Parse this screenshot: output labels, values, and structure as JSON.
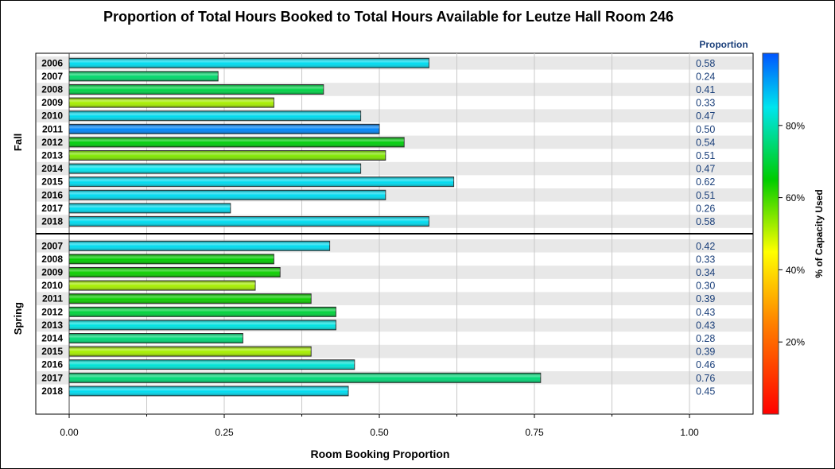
{
  "chart_data": {
    "type": "bar",
    "orientation": "horizontal",
    "title": "Proportion of Total Hours Booked to Total Hours Available for Leutze Hall Room 246",
    "xlabel": "Room Booking Proportion",
    "value_column_header": "Proportion",
    "xlim": [
      0,
      1.1
    ],
    "x_ticks": [
      "0.00",
      "0.25",
      "0.50",
      "0.75",
      "1.00"
    ],
    "x_tick_values": [
      0,
      0.25,
      0.5,
      0.75,
      1.0
    ],
    "grid": true,
    "colorbar": {
      "label": "% of Capacity Used",
      "ticks": [
        "20%",
        "40%",
        "60%",
        "80%"
      ],
      "tick_values": [
        20,
        40,
        60,
        80
      ],
      "range": [
        0,
        100
      ],
      "placement": "right"
    },
    "groups": [
      {
        "name": "Fall",
        "categories": [
          "2006",
          "2007",
          "2008",
          "2009",
          "2010",
          "2011",
          "2012",
          "2013",
          "2014",
          "2015",
          "2016",
          "2017",
          "2018"
        ],
        "values": [
          0.58,
          0.24,
          0.41,
          0.33,
          0.47,
          0.5,
          0.54,
          0.51,
          0.47,
          0.62,
          0.51,
          0.26,
          0.58
        ],
        "labels": [
          "0.58",
          "0.24",
          "0.41",
          "0.33",
          "0.47",
          "0.50",
          "0.54",
          "0.51",
          "0.47",
          "0.62",
          "0.51",
          "0.26",
          "0.58"
        ],
        "capacity_pct": [
          86,
          74,
          71,
          52,
          86,
          95,
          66,
          55,
          85,
          86,
          86,
          86,
          86
        ]
      },
      {
        "name": "Spring",
        "categories": [
          "2007",
          "2008",
          "2009",
          "2010",
          "2011",
          "2012",
          "2013",
          "2014",
          "2015",
          "2016",
          "2017",
          "2018"
        ],
        "values": [
          0.42,
          0.33,
          0.34,
          0.3,
          0.39,
          0.43,
          0.43,
          0.28,
          0.39,
          0.46,
          0.76,
          0.45
        ],
        "labels": [
          "0.42",
          "0.33",
          "0.34",
          "0.30",
          "0.39",
          "0.43",
          "0.43",
          "0.28",
          "0.39",
          "0.46",
          "0.76",
          "0.45"
        ],
        "capacity_pct": [
          86,
          65,
          64,
          52,
          64,
          70,
          84,
          75,
          52,
          83,
          75,
          86
        ]
      }
    ]
  }
}
